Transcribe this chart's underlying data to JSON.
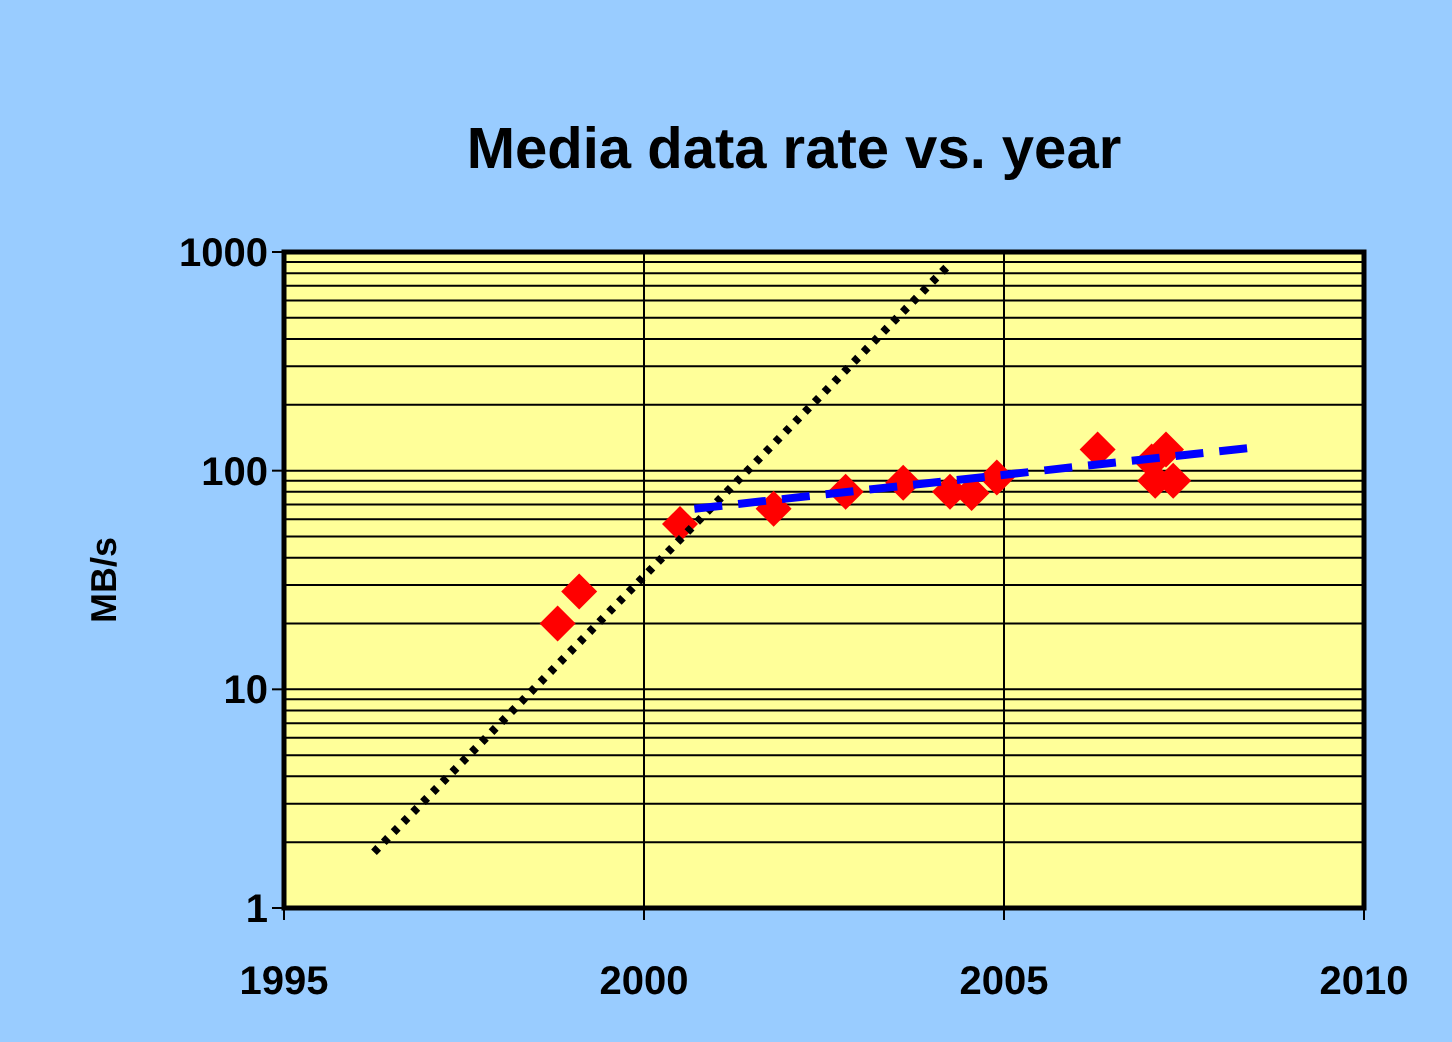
{
  "chart_data": {
    "type": "scatter",
    "title": "Media data rate vs. year",
    "ylabel": "MB/s",
    "log": "y",
    "grid": true,
    "xlim": [
      1995,
      2010
    ],
    "xticks": [
      1995,
      2000,
      2005,
      2010
    ],
    "ylim": [
      1,
      1000
    ],
    "yticks": [
      1,
      10,
      100,
      1000
    ],
    "series": [
      {
        "color": "#ff0000",
        "marker": "diamond",
        "x": [
          1998.8,
          1999.1,
          2000.5,
          2001.8,
          2002.8,
          2003.6,
          2004.25,
          2004.55,
          2004.9,
          2006.3,
          2007.05,
          2007.25,
          2007.1,
          2007.35
        ],
        "values": [
          20,
          28,
          57,
          67,
          80,
          88,
          80,
          79,
          93,
          125,
          110,
          125,
          90,
          90
        ]
      },
      {
        "type": "line",
        "color": "#000000",
        "line_style": "dotted",
        "marker": "none",
        "x": [
          1996.25,
          2004.2
        ],
        "values": [
          1.8,
          850
        ]
      },
      {
        "type": "line",
        "color": "#0000ff",
        "line_style": "dashed",
        "marker": "none",
        "x": [
          2000.7,
          2008.4
        ],
        "values": [
          67,
          127
        ]
      }
    ]
  }
}
